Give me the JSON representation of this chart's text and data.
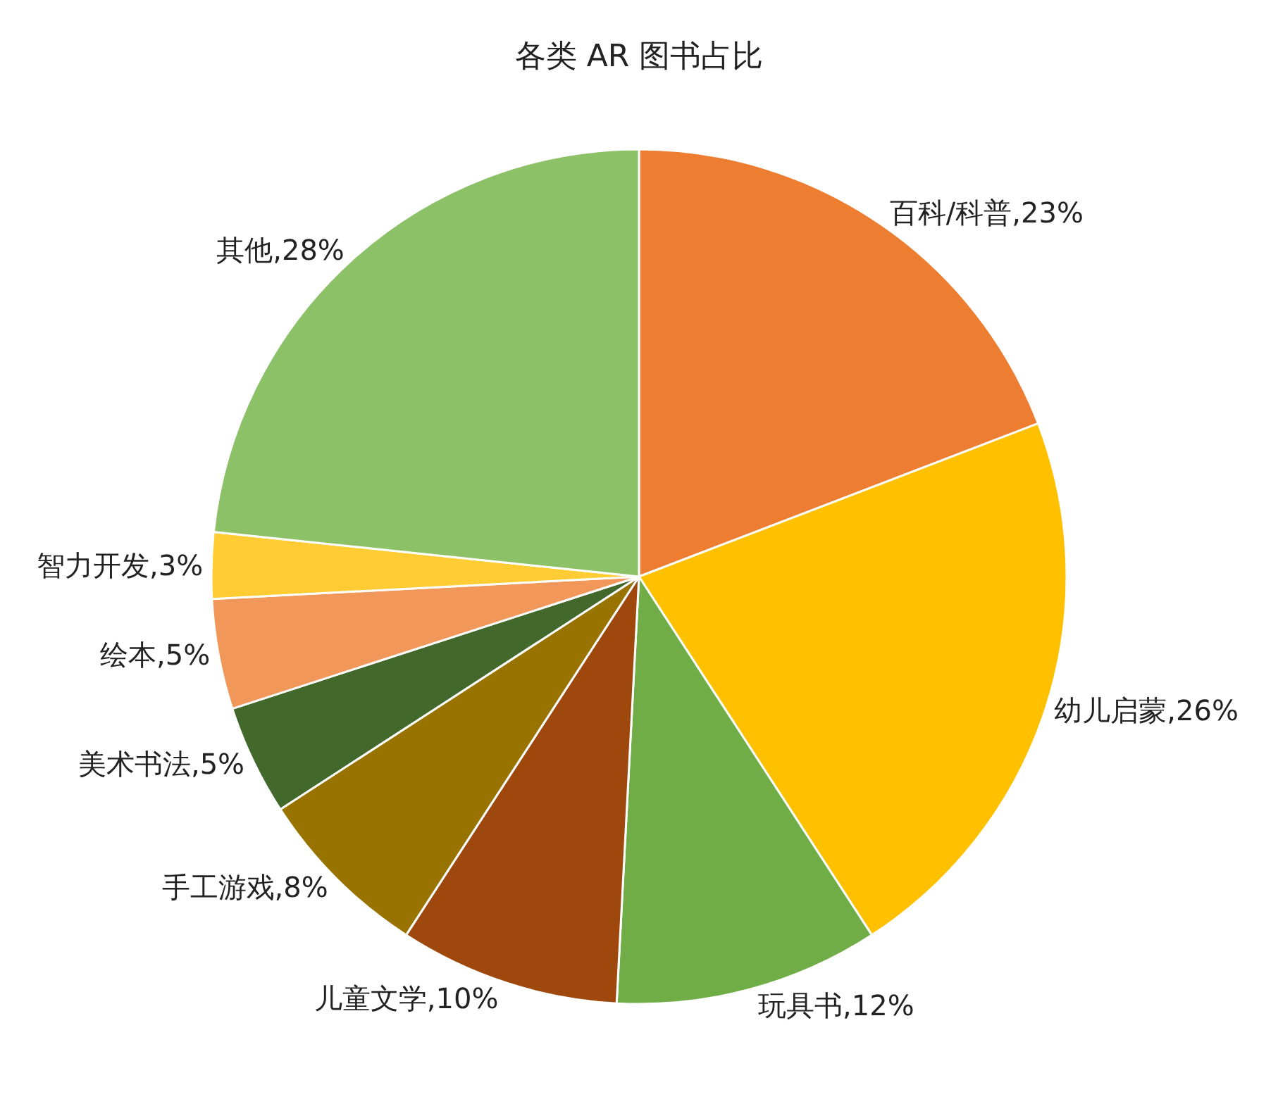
{
  "chart_data": {
    "type": "pie",
    "title": "各类 AR 图书占比",
    "categories": [
      "百科/科普",
      "幼儿启蒙",
      "玩具书",
      "儿童文学",
      "手工游戏",
      "美术书法",
      "绘本",
      "智力开发",
      "其他"
    ],
    "values": [
      23,
      26,
      12,
      10,
      8,
      5,
      5,
      3,
      28
    ],
    "value_labels": [
      "23%",
      "26%",
      "12%",
      "10%",
      "8%",
      "5%",
      "5%",
      "3%",
      "28%"
    ],
    "colors": [
      "#ed7d31",
      "#ffc000",
      "#70ad47",
      "#9e480e",
      "#997300",
      "#43682b",
      "#f1975a",
      "#ffcd33",
      "#8cc168"
    ],
    "legend": false
  }
}
